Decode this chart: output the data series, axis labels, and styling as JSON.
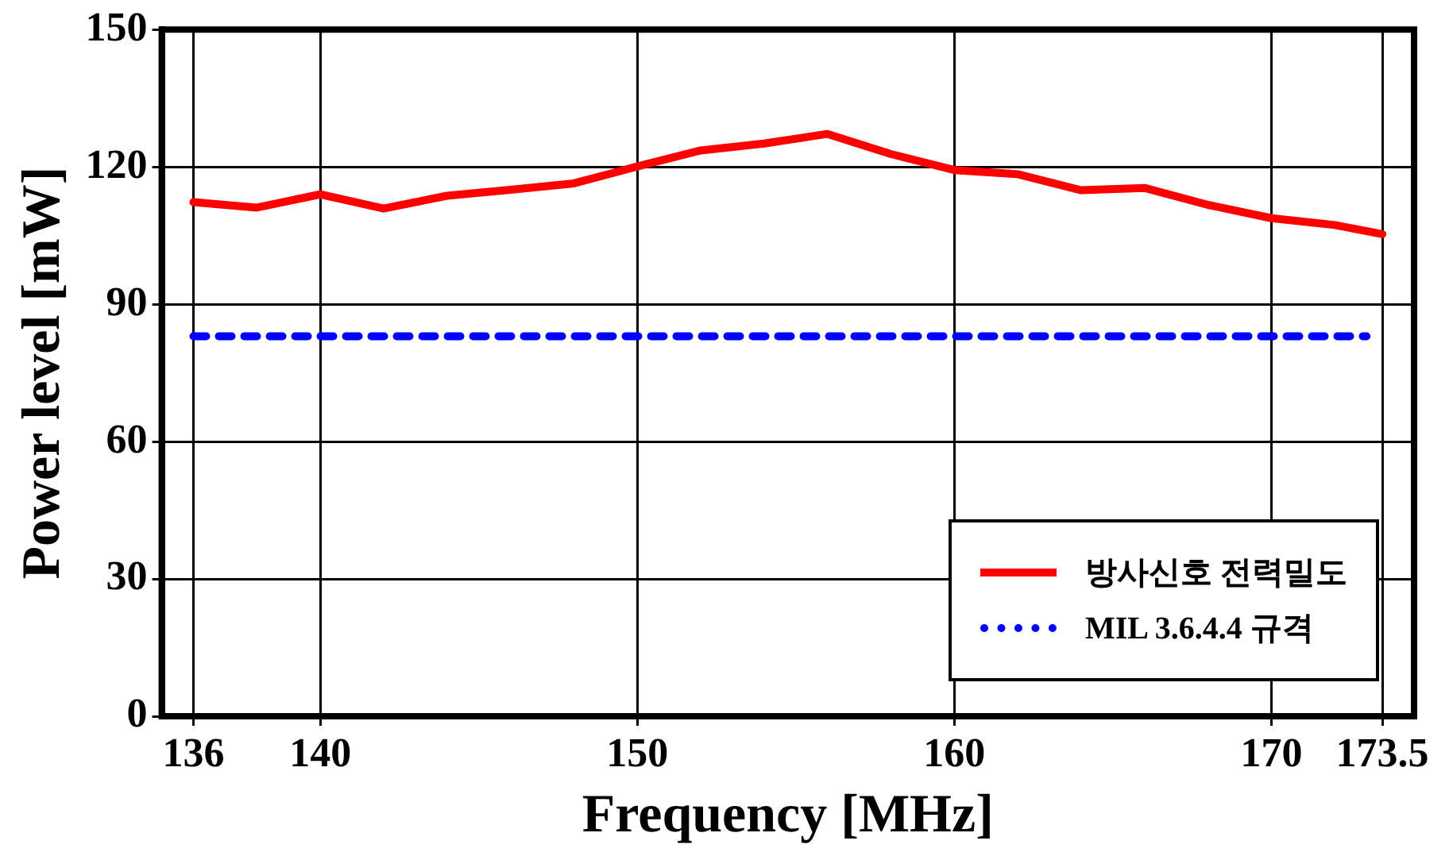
{
  "chart_data": {
    "type": "line",
    "xlabel": "Frequency [MHz]",
    "ylabel": "Power level [mW]",
    "x": [
      136,
      138,
      140,
      142,
      144,
      146,
      148,
      150,
      152,
      154,
      156,
      158,
      160,
      162,
      164,
      166,
      168,
      170,
      172,
      173.5
    ],
    "series": [
      {
        "name": "방사신호 전력밀도",
        "color": "#ff0000",
        "line_style": "solid",
        "values": [
          112.3,
          111.1,
          114,
          110.9,
          113.7,
          115,
          116.4,
          120.1,
          123.6,
          125.1,
          127.2,
          122.8,
          119.3,
          118.4,
          114.9,
          115.4,
          111.7,
          108.8,
          107.3,
          105.3
        ]
      },
      {
        "name": "MIL 3.6.4.4 규격",
        "color": "#0000ff",
        "line_style": "dotted",
        "x": [
          136,
          173
        ],
        "values": [
          83,
          83
        ]
      }
    ],
    "xlim": [
      135,
      174.5
    ],
    "xticks": [
      136,
      140,
      150,
      160,
      170,
      173.5
    ],
    "ylim": [
      0,
      150
    ],
    "yticks": [
      0,
      30,
      60,
      90,
      120,
      150
    ],
    "grid": true,
    "legend": "bottom right",
    "marker": "none"
  }
}
